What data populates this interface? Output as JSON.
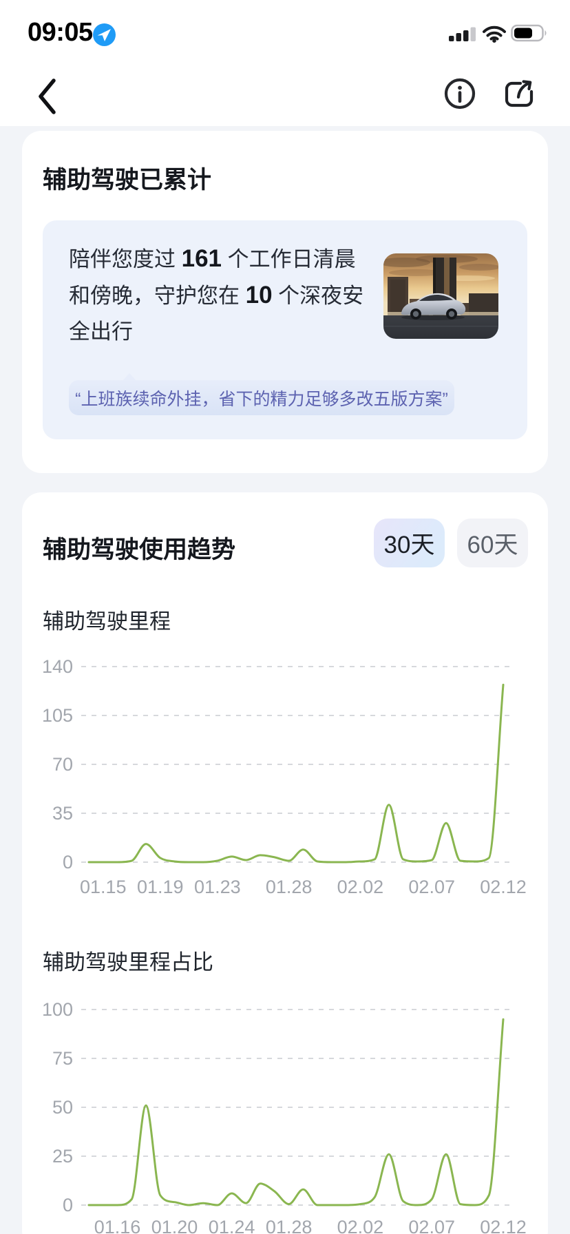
{
  "status_bar": {
    "time": "09:05"
  },
  "summary_card": {
    "title": "辅助驾驶已累计",
    "message_segments": [
      "陪伴您度过 ",
      "161",
      " 个工作日清晨和傍晚，守护您在 ",
      "10",
      " 个深夜安全出行"
    ],
    "quote": "“上班族续命外挂，省下的精力足够多改五版方案”"
  },
  "trend_card": {
    "title": "辅助驾驶使用趋势",
    "range_options": [
      {
        "label": "30天",
        "active": true
      },
      {
        "label": "60天",
        "active": false
      }
    ]
  },
  "chart_data": [
    {
      "type": "line",
      "title": "辅助驾驶里程",
      "x": [
        "01.14",
        "01.15",
        "01.16",
        "01.17",
        "01.18",
        "01.19",
        "01.20",
        "01.21",
        "01.22",
        "01.23",
        "01.24",
        "01.25",
        "01.26",
        "01.27",
        "01.28",
        "01.29",
        "01.30",
        "01.31",
        "02.01",
        "02.02",
        "02.03",
        "02.04",
        "02.05",
        "02.06",
        "02.07",
        "02.08",
        "02.09",
        "02.10",
        "02.11",
        "02.12"
      ],
      "values": [
        0,
        0,
        0,
        1,
        13,
        3,
        0.5,
        0,
        0,
        1,
        4,
        1.5,
        5,
        3.5,
        1,
        9,
        0.5,
        0,
        0,
        0.5,
        2,
        41,
        2,
        0.5,
        1.5,
        28,
        1,
        0.5,
        3,
        127
      ],
      "yticks": [
        0,
        35,
        70,
        105,
        140
      ],
      "xticks": [
        {
          "label": "01.15",
          "index": 1
        },
        {
          "label": "01.19",
          "index": 5
        },
        {
          "label": "01.23",
          "index": 9
        },
        {
          "label": "01.28",
          "index": 14
        },
        {
          "label": "02.02",
          "index": 19
        },
        {
          "label": "02.07",
          "index": 24
        },
        {
          "label": "02.12",
          "index": 29
        }
      ],
      "ylim": [
        0,
        148
      ],
      "grid": "dashed-horizontal",
      "legend": false,
      "line_color": "#8ab650"
    },
    {
      "type": "line",
      "title": "辅助驾驶里程占比",
      "x": [
        "01.14",
        "01.15",
        "01.16",
        "01.17",
        "01.18",
        "01.19",
        "01.20",
        "01.21",
        "01.22",
        "01.23",
        "01.24",
        "01.25",
        "01.26",
        "01.27",
        "01.28",
        "01.29",
        "01.30",
        "01.31",
        "02.01",
        "02.02",
        "02.03",
        "02.04",
        "02.05",
        "02.06",
        "02.07",
        "02.08",
        "02.09",
        "02.10",
        "02.11",
        "02.12"
      ],
      "values": [
        0,
        0,
        0,
        3,
        51,
        5,
        1.5,
        0,
        1,
        0,
        6,
        1,
        11,
        7,
        0.5,
        8,
        0,
        0,
        0,
        0.5,
        4,
        26,
        2,
        0,
        3,
        26,
        0.5,
        0,
        5,
        95
      ],
      "yticks": [
        0,
        25,
        50,
        75,
        100
      ],
      "xticks": [
        {
          "label": "01.16",
          "index": 2
        },
        {
          "label": "01.20",
          "index": 6
        },
        {
          "label": "01.24",
          "index": 10
        },
        {
          "label": "01.28",
          "index": 14
        },
        {
          "label": "02.02",
          "index": 19
        },
        {
          "label": "02.07",
          "index": 24
        },
        {
          "label": "02.12",
          "index": 29
        }
      ],
      "ylim": [
        0,
        106
      ],
      "grid": "dashed-horizontal",
      "legend": false,
      "line_color": "#8ab650"
    }
  ],
  "colors": {
    "accent_green": "#8ab650",
    "page_bg": "#f2f4f8",
    "card_bg": "#ffffff",
    "inner_box_bg": "#edf2fb",
    "bubble_bg": "#dde6f8",
    "bubble_text": "#5c62b0",
    "tick_label": "#a2a6ad",
    "gridline": "#d6d8dc",
    "location_badge": "#1f9bf6"
  }
}
